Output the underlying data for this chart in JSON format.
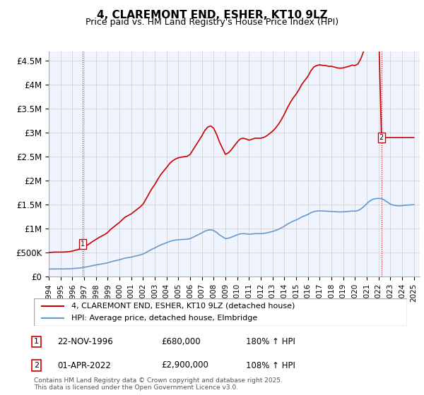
{
  "title": "4, CLAREMONT END, ESHER, KT10 9LZ",
  "subtitle": "Price paid vs. HM Land Registry's House Price Index (HPI)",
  "hpi_color": "#6699cc",
  "sale_color": "#cc0000",
  "background_color": "#ffffff",
  "plot_bg_color": "#f0f4ff",
  "grid_color": "#cccccc",
  "ylim": [
    0,
    4700000
  ],
  "xlim_start": 1994.0,
  "xlim_end": 2025.5,
  "yticks": [
    0,
    500000,
    1000000,
    1500000,
    2000000,
    2500000,
    3000000,
    3500000,
    4000000,
    4500000
  ],
  "ytick_labels": [
    "£0",
    "£500K",
    "£1M",
    "£1.5M",
    "£2M",
    "£2.5M",
    "£3M",
    "£3.5M",
    "£4M",
    "£4.5M"
  ],
  "xtick_years": [
    1994,
    1995,
    1996,
    1997,
    1998,
    1999,
    2000,
    2001,
    2002,
    2003,
    2004,
    2005,
    2006,
    2007,
    2008,
    2009,
    2010,
    2011,
    2012,
    2013,
    2014,
    2015,
    2016,
    2017,
    2018,
    2019,
    2020,
    2021,
    2022,
    2023,
    2024,
    2025
  ],
  "sale_dates": [
    1996.9,
    2022.25
  ],
  "sale_prices": [
    680000,
    2900000
  ],
  "sale_labels": [
    "1",
    "2"
  ],
  "annotation1": "1    22-NOV-1996        £680,000        180% ↑ HPI",
  "annotation2": "2    01-APR-2022        £2,900,000        108% ↑ HPI",
  "legend_sale": "4, CLAREMONT END, ESHER, KT10 9LZ (detached house)",
  "legend_hpi": "HPI: Average price, detached house, Elmbridge",
  "footer": "Contains HM Land Registry data © Crown copyright and database right 2025.\nThis data is licensed under the Open Government Licence v3.0.",
  "hpi_data_x": [
    1994.0,
    1994.25,
    1994.5,
    1994.75,
    1995.0,
    1995.25,
    1995.5,
    1995.75,
    1996.0,
    1996.25,
    1996.5,
    1996.75,
    1997.0,
    1997.25,
    1997.5,
    1997.75,
    1998.0,
    1998.25,
    1998.5,
    1998.75,
    1999.0,
    1999.25,
    1999.5,
    1999.75,
    2000.0,
    2000.25,
    2000.5,
    2000.75,
    2001.0,
    2001.25,
    2001.5,
    2001.75,
    2002.0,
    2002.25,
    2002.5,
    2002.75,
    2003.0,
    2003.25,
    2003.5,
    2003.75,
    2004.0,
    2004.25,
    2004.5,
    2004.75,
    2005.0,
    2005.25,
    2005.5,
    2005.75,
    2006.0,
    2006.25,
    2006.5,
    2006.75,
    2007.0,
    2007.25,
    2007.5,
    2007.75,
    2008.0,
    2008.25,
    2008.5,
    2008.75,
    2009.0,
    2009.25,
    2009.5,
    2009.75,
    2010.0,
    2010.25,
    2010.5,
    2010.75,
    2011.0,
    2011.25,
    2011.5,
    2011.75,
    2012.0,
    2012.25,
    2012.5,
    2012.75,
    2013.0,
    2013.25,
    2013.5,
    2013.75,
    2014.0,
    2014.25,
    2014.5,
    2014.75,
    2015.0,
    2015.25,
    2015.5,
    2015.75,
    2016.0,
    2016.25,
    2016.5,
    2016.75,
    2017.0,
    2017.25,
    2017.5,
    2017.75,
    2018.0,
    2018.25,
    2018.5,
    2018.75,
    2019.0,
    2019.25,
    2019.5,
    2019.75,
    2020.0,
    2020.25,
    2020.5,
    2020.75,
    2021.0,
    2021.25,
    2021.5,
    2021.75,
    2022.0,
    2022.25,
    2022.5,
    2022.75,
    2023.0,
    2023.25,
    2023.5,
    2023.75,
    2024.0,
    2024.25,
    2024.5,
    2024.75,
    2025.0
  ],
  "hpi_data_y": [
    155000,
    157000,
    158000,
    158000,
    158000,
    158000,
    160000,
    162000,
    165000,
    170000,
    175000,
    182000,
    192000,
    202000,
    215000,
    228000,
    240000,
    252000,
    262000,
    272000,
    285000,
    305000,
    320000,
    335000,
    350000,
    368000,
    385000,
    395000,
    405000,
    420000,
    435000,
    450000,
    468000,
    500000,
    535000,
    568000,
    595000,
    628000,
    658000,
    682000,
    705000,
    730000,
    748000,
    760000,
    768000,
    772000,
    775000,
    778000,
    790000,
    820000,
    850000,
    880000,
    910000,
    945000,
    968000,
    975000,
    960000,
    920000,
    870000,
    830000,
    790000,
    800000,
    820000,
    845000,
    870000,
    890000,
    895000,
    890000,
    882000,
    888000,
    895000,
    895000,
    895000,
    900000,
    910000,
    925000,
    940000,
    960000,
    985000,
    1015000,
    1050000,
    1090000,
    1125000,
    1155000,
    1180000,
    1210000,
    1245000,
    1270000,
    1295000,
    1330000,
    1355000,
    1365000,
    1370000,
    1368000,
    1365000,
    1360000,
    1360000,
    1355000,
    1350000,
    1348000,
    1350000,
    1355000,
    1360000,
    1368000,
    1365000,
    1375000,
    1410000,
    1460000,
    1520000,
    1575000,
    1610000,
    1625000,
    1630000,
    1625000,
    1595000,
    1555000,
    1510000,
    1490000,
    1480000,
    1475000,
    1480000,
    1488000,
    1492000,
    1495000,
    1500000
  ],
  "sale_line_x": [
    1996.9,
    2022.25
  ],
  "vline_color": "#cc0000",
  "marker_color": "#cc0000",
  "sale_marker_size": 7,
  "red_line_data_x": [
    1994.0,
    1994.25,
    1994.5,
    1994.75,
    1995.0,
    1995.25,
    1995.5,
    1995.75,
    1996.0,
    1996.25,
    1996.5,
    1996.75,
    1996.9,
    1997.0,
    1997.25,
    1997.5,
    1997.75,
    1998.0,
    1998.25,
    1998.5,
    1998.75,
    1999.0,
    1999.25,
    1999.5,
    1999.75,
    2000.0,
    2000.25,
    2000.5,
    2000.75,
    2001.0,
    2001.25,
    2001.5,
    2001.75,
    2002.0,
    2002.25,
    2002.5,
    2002.75,
    2003.0,
    2003.25,
    2003.5,
    2003.75,
    2004.0,
    2004.25,
    2004.5,
    2004.75,
    2005.0,
    2005.25,
    2005.5,
    2005.75,
    2006.0,
    2006.25,
    2006.5,
    2006.75,
    2007.0,
    2007.25,
    2007.5,
    2007.75,
    2008.0,
    2008.25,
    2008.5,
    2008.75,
    2009.0,
    2009.25,
    2009.5,
    2009.75,
    2010.0,
    2010.25,
    2010.5,
    2010.75,
    2011.0,
    2011.25,
    2011.5,
    2011.75,
    2012.0,
    2012.25,
    2012.5,
    2012.75,
    2013.0,
    2013.25,
    2013.5,
    2013.75,
    2014.0,
    2014.25,
    2014.5,
    2014.75,
    2015.0,
    2015.25,
    2015.5,
    2015.75,
    2016.0,
    2016.25,
    2016.5,
    2016.75,
    2017.0,
    2017.25,
    2017.5,
    2017.75,
    2018.0,
    2018.25,
    2018.5,
    2018.75,
    2019.0,
    2019.25,
    2019.5,
    2019.75,
    2020.0,
    2020.25,
    2020.5,
    2020.75,
    2021.0,
    2021.25,
    2021.5,
    2021.75,
    2022.0,
    2022.25,
    2022.5,
    2022.75,
    2023.0,
    2023.25,
    2023.5,
    2023.75,
    2024.0,
    2024.25,
    2024.5,
    2024.75,
    2025.0
  ],
  "red_line_data_y": [
    500000,
    505000,
    510000,
    510000,
    510000,
    510000,
    515000,
    520000,
    530000,
    548000,
    564000,
    586000,
    680000,
    680000,
    650000,
    692000,
    735000,
    773000,
    812000,
    845000,
    877000,
    919000,
    983000,
    1031000,
    1080000,
    1129000,
    1187000,
    1242000,
    1274000,
    1307000,
    1355000,
    1403000,
    1451000,
    1509000,
    1613000,
    1725000,
    1832000,
    1919000,
    2026000,
    2123000,
    2200000,
    2274000,
    2355000,
    2413000,
    2452000,
    2478000,
    2491000,
    2500000,
    2509000,
    2548000,
    2645000,
    2742000,
    2839000,
    2936000,
    3048000,
    3120000,
    3143000,
    3095000,
    2967000,
    2806000,
    2677000,
    2549000,
    2581000,
    2645000,
    2727000,
    2806000,
    2871000,
    2887000,
    2871000,
    2845000,
    2865000,
    2887000,
    2887000,
    2887000,
    2903000,
    2935000,
    2984000,
    3032000,
    3097000,
    3178000,
    3274000,
    3387000,
    3516000,
    3629000,
    3726000,
    3807000,
    3904000,
    4016000,
    4097000,
    4177000,
    4291000,
    4372000,
    4404000,
    4420000,
    4407000,
    4404000,
    4388000,
    4388000,
    4372000,
    4355000,
    4349000,
    4355000,
    4372000,
    4388000,
    4413000,
    4404000,
    4436000,
    4549000,
    4710000,
    4904000,
    5081000,
    5194000,
    5242000,
    5258000,
    2900000,
    2900000,
    2900000,
    2900000,
    2900000,
    2900000,
    2900000,
    2900000,
    2900000,
    2900000,
    2900000,
    2900000
  ]
}
